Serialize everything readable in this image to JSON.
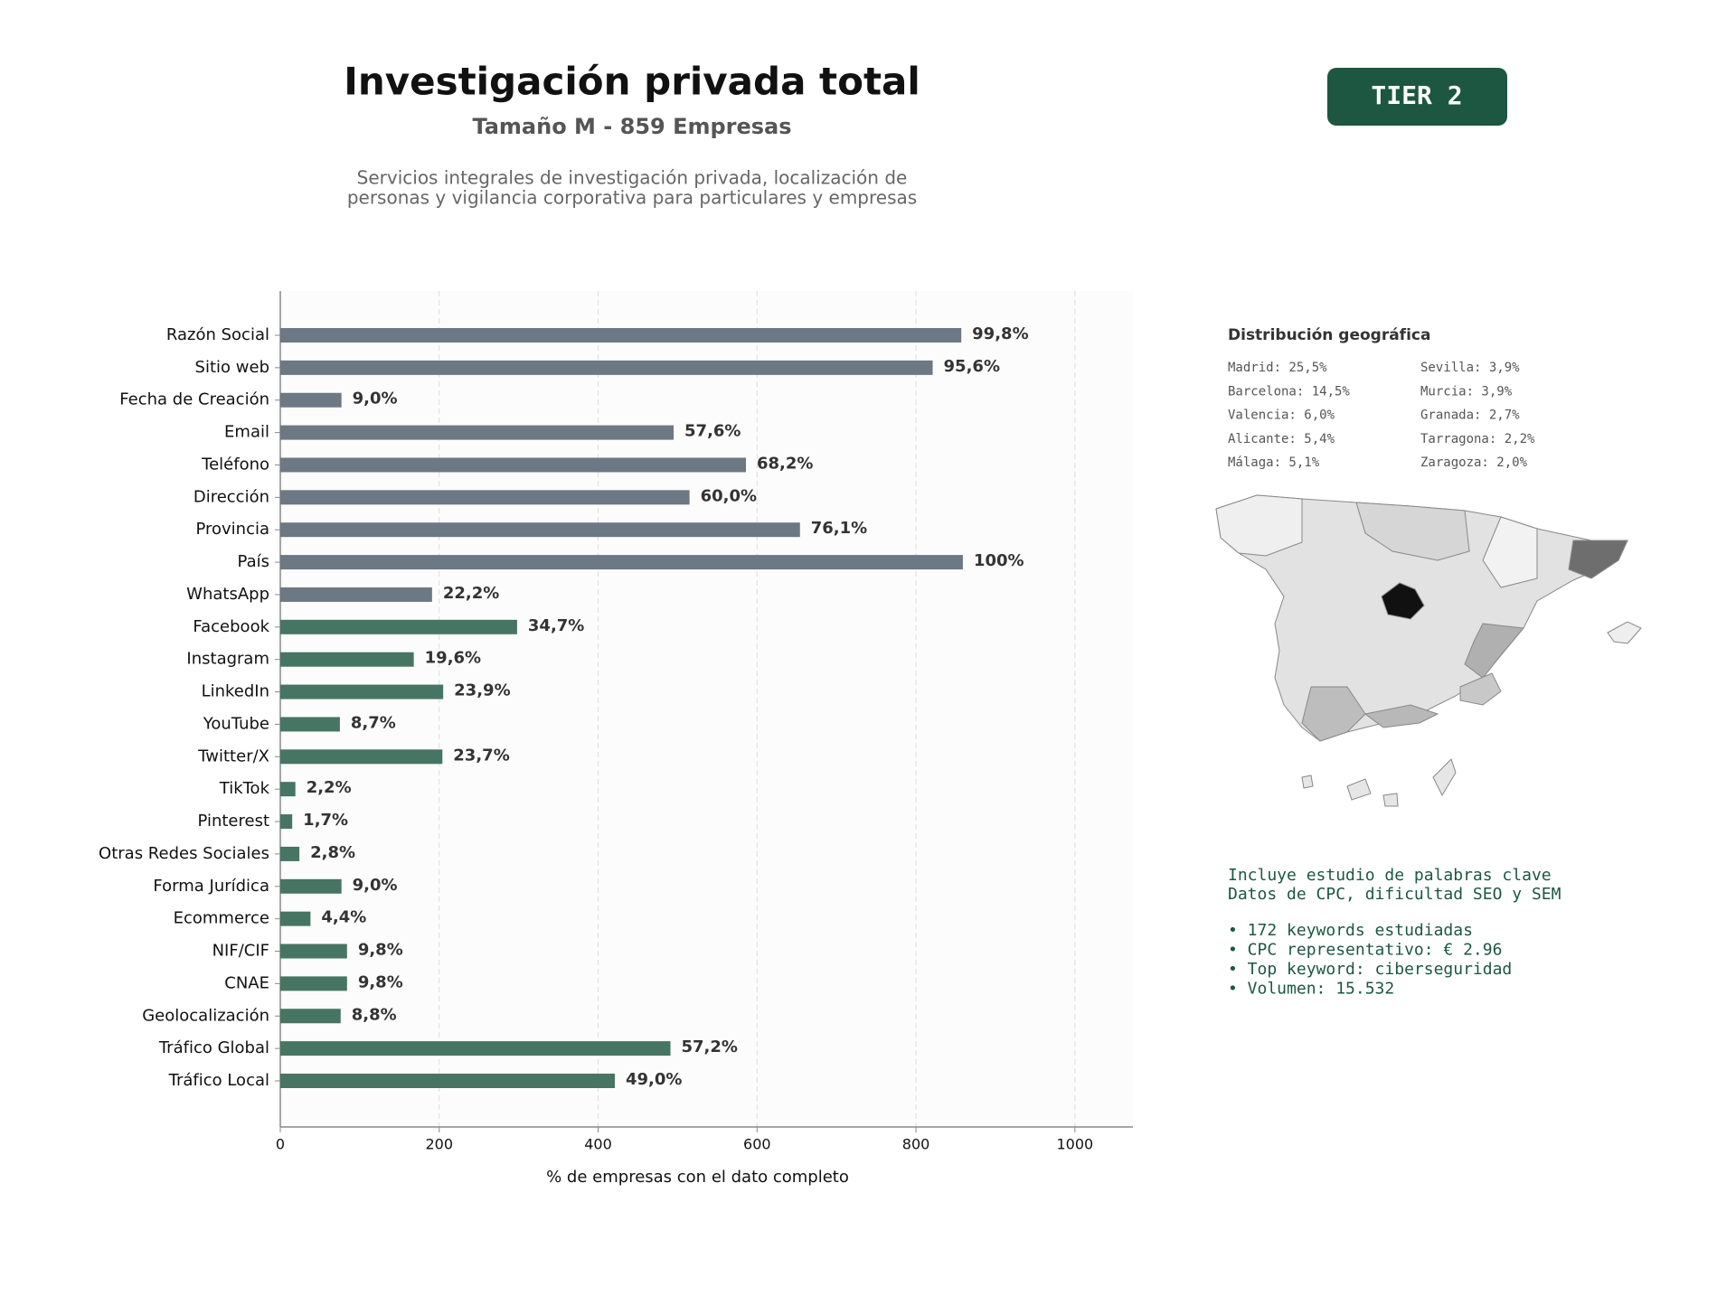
{
  "header": {
    "title": "Investigación privada total",
    "subtitle": "Tamaño M - 859 Empresas",
    "description": [
      "Servicios integrales de investigación privada, localización de",
      "personas y vigilancia corporativa para particulares y empresas"
    ]
  },
  "badge": "TIER 2",
  "geo": {
    "title": "Distribución geográfica",
    "items": [
      "Madrid: 25,5%",
      "Barcelona: 14,5%",
      "Valencia: 6,0%",
      "Alicante: 5,4%",
      "Málaga: 5,1%",
      "Sevilla: 3,9%",
      "Murcia: 3,9%",
      "Granada: 2,7%",
      "Tarragona: 2,2%",
      "Zaragoza: 2,0%"
    ]
  },
  "keywords": {
    "intro": [
      "Incluye estudio de palabras clave",
      "Datos de CPC, dificultad SEO y SEM"
    ],
    "bullets": [
      "• 172 keywords estudiadas",
      "• CPC representativo: € 2.96",
      "• Top keyword: ciberseguridad",
      "• Volumen: 15.532"
    ]
  },
  "chart_data": {
    "type": "bar",
    "orientation": "horizontal",
    "categories": [
      "Razón Social",
      "Sitio web",
      "Fecha de Creación",
      "Email",
      "Teléfono",
      "Dirección",
      "Provincia",
      "País",
      "WhatsApp",
      "Facebook",
      "Instagram",
      "LinkedIn",
      "YouTube",
      "Twitter/X",
      "TikTok",
      "Pinterest",
      "Otras Redes Sociales",
      "Forma Jurídica",
      "Ecommerce",
      "NIF/CIF",
      "CNAE",
      "Geolocalización",
      "Tráfico Global",
      "Tráfico Local"
    ],
    "values": [
      857,
      821,
      77,
      495,
      586,
      515,
      654,
      859,
      191,
      298,
      168,
      205,
      75,
      204,
      19,
      15,
      24,
      77,
      38,
      84,
      84,
      76,
      491,
      421
    ],
    "value_labels": [
      "99,8%",
      "95,6%",
      "9,0%",
      "57,6%",
      "68,2%",
      "60,0%",
      "76,1%",
      "100%",
      "22,2%",
      "34,7%",
      "19,6%",
      "23,9%",
      "8,7%",
      "23,7%",
      "2,2%",
      "1,7%",
      "2,8%",
      "9,0%",
      "4,4%",
      "9,8%",
      "9,8%",
      "8,8%",
      "57,2%",
      "49,0%"
    ],
    "colors": [
      "#6c7883",
      "#6c7883",
      "#6c7883",
      "#6c7883",
      "#6c7883",
      "#6c7883",
      "#6c7883",
      "#6c7883",
      "#6c7883",
      "#477563",
      "#477563",
      "#477563",
      "#477563",
      "#477563",
      "#477563",
      "#477563",
      "#477563",
      "#477563",
      "#477563",
      "#477563",
      "#477563",
      "#477563",
      "#477563",
      "#477563"
    ],
    "xlabel": "% de empresas con el dato completo",
    "xlim": [
      0,
      1073
    ],
    "xticks": [
      0,
      200,
      400,
      600,
      800,
      1000
    ],
    "grid": true
  }
}
